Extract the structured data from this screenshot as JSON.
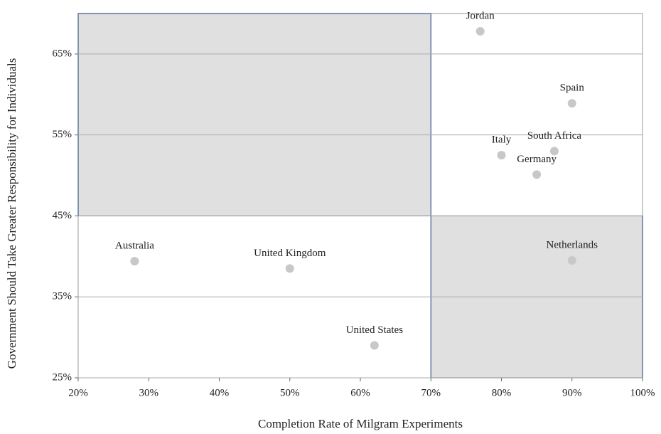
{
  "chart_data": {
    "type": "scatter",
    "xlabel": "Completion Rate of Milgram Experiments",
    "ylabel": "Government Should Take Greater Responsibility for Individuals",
    "labels": [
      "Jordan",
      "Spain",
      "Italy",
      "South Africa",
      "Germany",
      "Netherlands",
      "Australia",
      "United Kingdom",
      "United States"
    ],
    "x": [
      77,
      90,
      80,
      87.5,
      85,
      90,
      28,
      50,
      62
    ],
    "values": [
      67.8,
      58.9,
      52.5,
      53,
      50.1,
      39.5,
      39.4,
      38.5,
      29
    ],
    "color": "#c8c8c8",
    "regions": [
      {
        "xlim": [
          20,
          70
        ],
        "ylim": [
          45,
          70
        ]
      },
      {
        "xlim": [
          70,
          100
        ],
        "ylim": [
          25,
          45
        ]
      }
    ],
    "region_color": "#e0e0e0",
    "region_border": "#3a5a8a",
    "xlim": [
      20,
      100
    ],
    "xticks": [
      {
        "value": 20,
        "label": "20%"
      },
      {
        "value": 30,
        "label": "30%"
      },
      {
        "value": 40,
        "label": "40%"
      },
      {
        "value": 50,
        "label": "50%"
      },
      {
        "value": 60,
        "label": "60%"
      },
      {
        "value": 70,
        "label": "70%"
      },
      {
        "value": 80,
        "label": "80%"
      },
      {
        "value": 90,
        "label": "90%"
      },
      {
        "value": 100,
        "label": "100%"
      }
    ],
    "ylim": [
      25,
      70
    ],
    "yticks": [
      {
        "value": 25,
        "label": "25%"
      },
      {
        "value": 35,
        "label": "35%"
      },
      {
        "value": 45,
        "label": "45%"
      },
      {
        "value": 55,
        "label": "55%"
      },
      {
        "value": 65,
        "label": "65%"
      }
    ],
    "grid": true
  }
}
